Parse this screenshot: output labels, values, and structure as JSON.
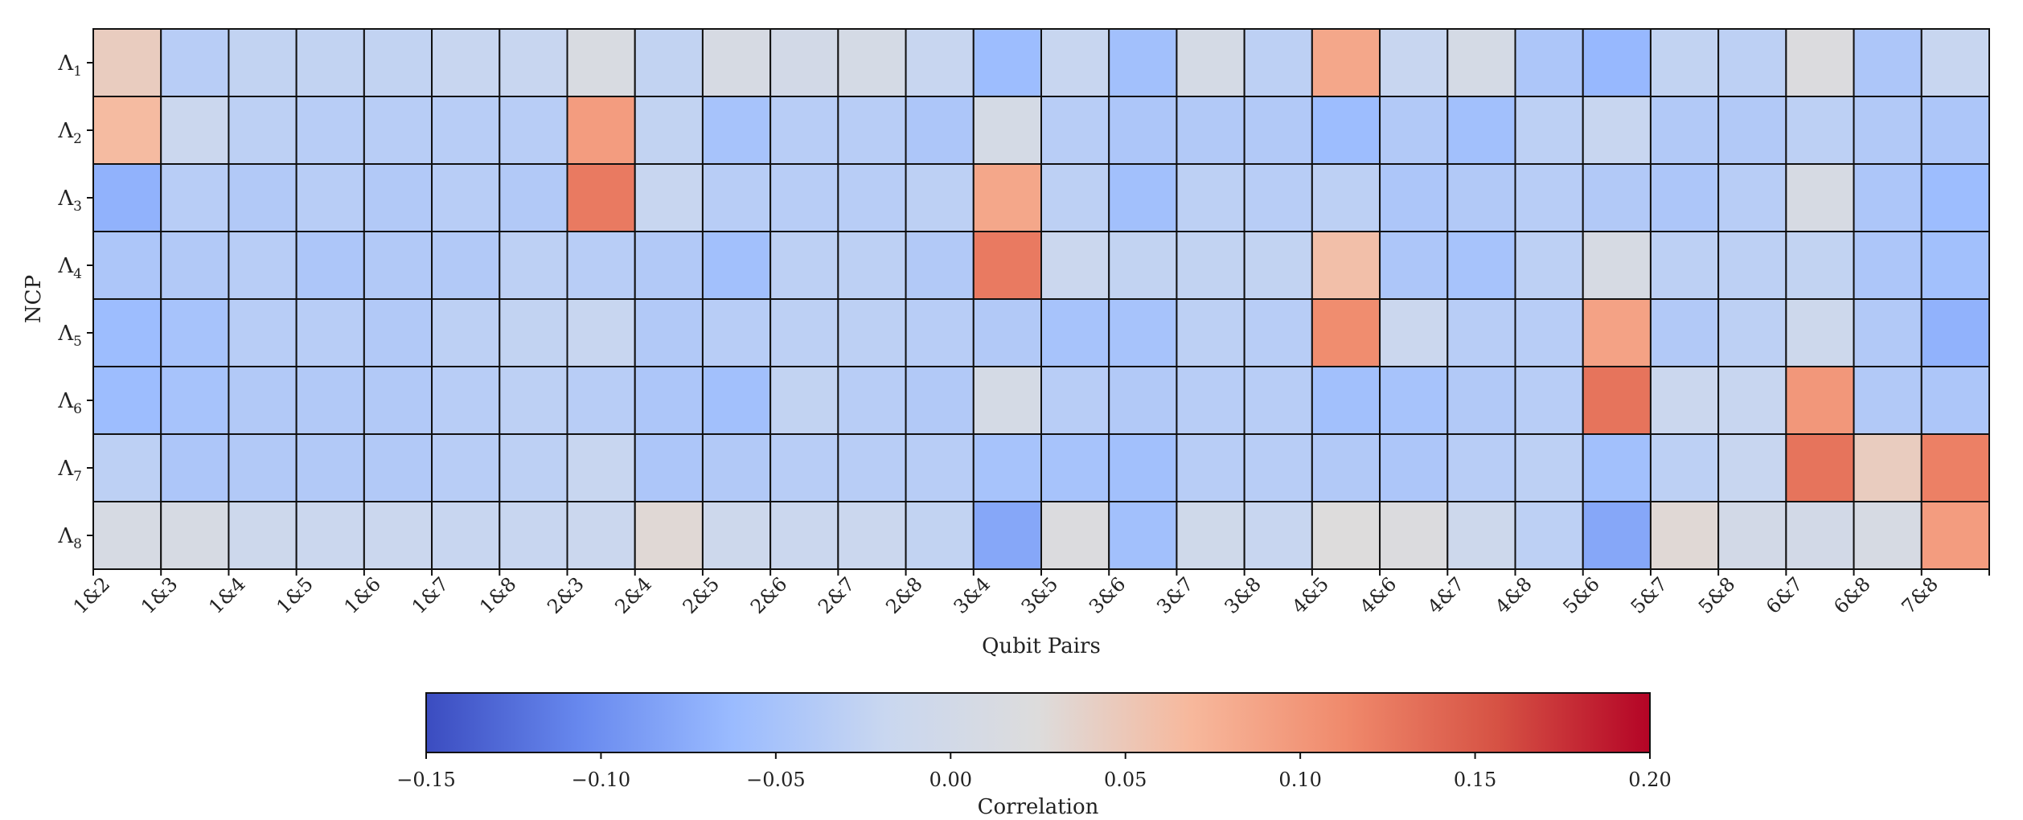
{
  "chart_data": {
    "type": "heatmap",
    "title": "",
    "xlabel": "Qubit Pairs",
    "ylabel": "NCP",
    "x_categories": [
      "1&2",
      "1&3",
      "1&4",
      "1&5",
      "1&6",
      "1&7",
      "1&8",
      "2&3",
      "2&4",
      "2&5",
      "2&6",
      "2&7",
      "2&8",
      "3&4",
      "3&5",
      "3&6",
      "3&7",
      "3&8",
      "4&5",
      "4&6",
      "4&7",
      "4&8",
      "5&6",
      "5&7",
      "5&8",
      "6&7",
      "6&8",
      "7&8"
    ],
    "y_categories": [
      {
        "base": "Λ",
        "sub": "1"
      },
      {
        "base": "Λ",
        "sub": "2"
      },
      {
        "base": "Λ",
        "sub": "3"
      },
      {
        "base": "Λ",
        "sub": "4"
      },
      {
        "base": "Λ",
        "sub": "5"
      },
      {
        "base": "Λ",
        "sub": "6"
      },
      {
        "base": "Λ",
        "sub": "7"
      },
      {
        "base": "Λ",
        "sub": "8"
      }
    ],
    "values": [
      [
        0.045,
        -0.035,
        -0.025,
        -0.025,
        -0.025,
        -0.02,
        -0.02,
        0.015,
        -0.025,
        0.01,
        0.0,
        0.005,
        -0.02,
        -0.06,
        -0.02,
        -0.055,
        0.005,
        -0.03,
        0.085,
        -0.02,
        0.005,
        -0.045,
        -0.065,
        -0.025,
        -0.03,
        0.02,
        -0.045,
        -0.02
      ],
      [
        0.065,
        -0.015,
        -0.03,
        -0.035,
        -0.035,
        -0.035,
        -0.035,
        0.095,
        -0.025,
        -0.05,
        -0.035,
        -0.035,
        -0.045,
        0.005,
        -0.035,
        -0.045,
        -0.04,
        -0.04,
        -0.06,
        -0.04,
        -0.055,
        -0.03,
        -0.02,
        -0.04,
        -0.04,
        -0.03,
        -0.04,
        -0.045
      ],
      [
        -0.07,
        -0.035,
        -0.04,
        -0.035,
        -0.04,
        -0.035,
        -0.04,
        0.125,
        -0.02,
        -0.035,
        -0.035,
        -0.035,
        -0.03,
        0.085,
        -0.03,
        -0.055,
        -0.03,
        -0.035,
        -0.03,
        -0.045,
        -0.04,
        -0.035,
        -0.04,
        -0.045,
        -0.035,
        0.01,
        -0.045,
        -0.06
      ],
      [
        -0.045,
        -0.04,
        -0.035,
        -0.045,
        -0.04,
        -0.04,
        -0.03,
        -0.035,
        -0.04,
        -0.055,
        -0.03,
        -0.03,
        -0.04,
        0.125,
        -0.015,
        -0.025,
        -0.025,
        -0.025,
        0.06,
        -0.045,
        -0.05,
        -0.03,
        0.01,
        -0.03,
        -0.03,
        -0.025,
        -0.045,
        -0.055
      ],
      [
        -0.06,
        -0.05,
        -0.035,
        -0.035,
        -0.04,
        -0.03,
        -0.025,
        -0.02,
        -0.04,
        -0.035,
        -0.03,
        -0.03,
        -0.035,
        -0.04,
        -0.05,
        -0.05,
        -0.03,
        -0.035,
        0.11,
        -0.015,
        -0.035,
        -0.035,
        0.09,
        -0.04,
        -0.03,
        -0.01,
        -0.04,
        -0.07
      ],
      [
        -0.06,
        -0.05,
        -0.04,
        -0.04,
        -0.04,
        -0.035,
        -0.03,
        -0.035,
        -0.045,
        -0.055,
        -0.025,
        -0.035,
        -0.04,
        0.005,
        -0.035,
        -0.04,
        -0.035,
        -0.035,
        -0.055,
        -0.05,
        -0.04,
        -0.035,
        0.13,
        -0.015,
        -0.02,
        0.1,
        -0.04,
        -0.045
      ],
      [
        -0.03,
        -0.045,
        -0.04,
        -0.04,
        -0.04,
        -0.035,
        -0.03,
        -0.02,
        -0.045,
        -0.04,
        -0.035,
        -0.035,
        -0.035,
        -0.05,
        -0.05,
        -0.055,
        -0.035,
        -0.035,
        -0.04,
        -0.045,
        -0.035,
        -0.03,
        -0.055,
        -0.03,
        -0.02,
        0.13,
        0.045,
        0.12
      ],
      [
        0.01,
        0.01,
        -0.01,
        -0.015,
        -0.015,
        -0.02,
        -0.02,
        -0.015,
        0.03,
        -0.01,
        -0.015,
        -0.015,
        -0.025,
        -0.08,
        0.02,
        -0.055,
        -0.005,
        -0.02,
        0.025,
        0.02,
        -0.01,
        -0.03,
        -0.08,
        0.03,
        0.0,
        0.0,
        0.01,
        0.095
      ]
    ],
    "colorbar": {
      "label": "Correlation",
      "min": -0.15,
      "max": 0.2,
      "ticks": [
        -0.15,
        -0.1,
        -0.05,
        0.0,
        0.05,
        0.1,
        0.15,
        0.2
      ],
      "tick_labels": [
        "−0.15",
        "−0.10",
        "−0.05",
        "0.00",
        "0.05",
        "0.10",
        "0.15",
        "0.20"
      ],
      "colormap": "coolwarm"
    },
    "colormap_stops": [
      "#3b4cc0",
      "#6788ee",
      "#9abbff",
      "#c9d7f0",
      "#dddcdc",
      "#f7b89c",
      "#f08a6c",
      "#d65244",
      "#b40426"
    ],
    "grid_line_color": "#111111",
    "grid": true,
    "legend": "colorbar-bottom"
  }
}
